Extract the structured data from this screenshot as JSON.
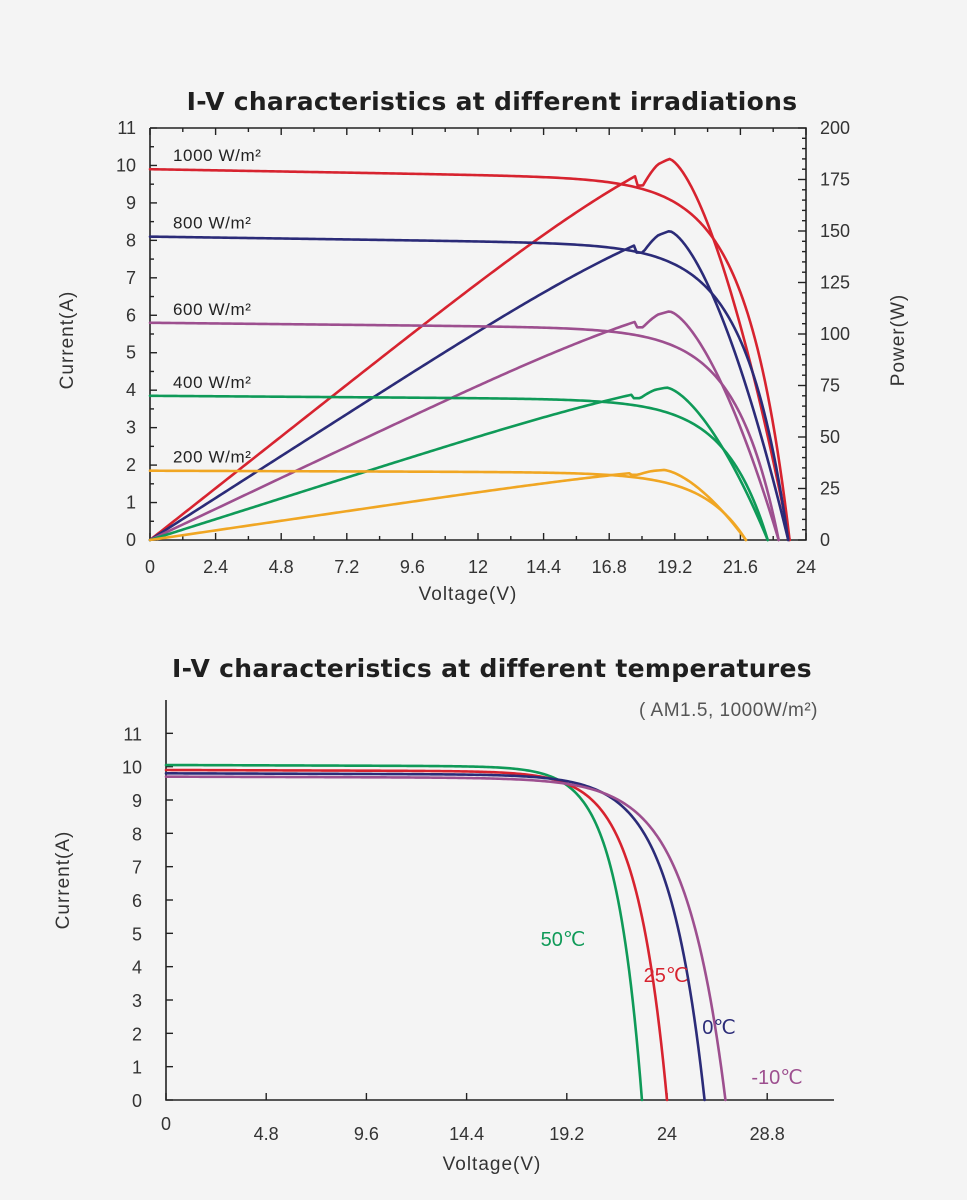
{
  "chart_data": [
    {
      "type": "line",
      "title": "I-V characteristics at different irradiations",
      "xlabel": "Voltage(V)",
      "ylabel": "Current(A)",
      "y2label": "Power(W)",
      "xlim": [
        0,
        24
      ],
      "ylim": [
        0,
        11
      ],
      "y2lim": [
        0,
        200
      ],
      "xticks": [
        "0",
        "2.4",
        "4.8",
        "7.2",
        "9.6",
        "12",
        "14.4",
        "16.8",
        "19.2",
        "21.6",
        "24"
      ],
      "yticks": [
        "0",
        "1",
        "2",
        "3",
        "4",
        "5",
        "6",
        "7",
        "8",
        "9",
        "10",
        "11"
      ],
      "y2ticks": [
        "0",
        "25",
        "50",
        "75",
        "100",
        "125",
        "150",
        "175",
        "200"
      ],
      "grid": false,
      "series": [
        {
          "name": "1000 W/m²",
          "color": "#d7232f",
          "isc": 9.9,
          "voc": 23.4,
          "pmax": 185,
          "vmp": 19.0
        },
        {
          "name": "800 W/m²",
          "color": "#2b2b78",
          "isc": 8.1,
          "voc": 23.35,
          "pmax": 150,
          "vmp": 19.0
        },
        {
          "name": "600 W/m²",
          "color": "#9d4f8f",
          "isc": 5.8,
          "voc": 23.0,
          "pmax": 111,
          "vmp": 19.0
        },
        {
          "name": "400 W/m²",
          "color": "#0f9a58",
          "isc": 3.85,
          "voc": 22.6,
          "pmax": 74,
          "vmp": 18.9
        },
        {
          "name": "200 W/m²",
          "color": "#f0a623",
          "isc": 1.85,
          "voc": 21.8,
          "pmax": 34,
          "vmp": 18.8
        }
      ]
    },
    {
      "type": "line",
      "title": "I-V characteristics at different temperatures",
      "subtitle": "( AM1.5, 1000W/m²)",
      "xlabel": "Voltage(V)",
      "ylabel": "Current(A)",
      "xlim": [
        0,
        32
      ],
      "ylim": [
        0,
        12
      ],
      "xticks": [
        "0",
        "4.8",
        "9.6",
        "14.4",
        "19.2",
        "24",
        "28.8"
      ],
      "yticks": [
        "0",
        "1",
        "2",
        "3",
        "4",
        "5",
        "6",
        "7",
        "8",
        "9",
        "10",
        "11"
      ],
      "grid": false,
      "series": [
        {
          "name": "50℃",
          "color": "#0f9a58",
          "isc": 10.05,
          "voc": 22.8
        },
        {
          "name": "25℃",
          "color": "#d7232f",
          "isc": 9.9,
          "voc": 24.0
        },
        {
          "name": "0℃",
          "color": "#2b2b78",
          "isc": 9.8,
          "voc": 25.8
        },
        {
          "name": "-10℃",
          "color": "#9d4f8f",
          "isc": 9.7,
          "voc": 26.8
        }
      ]
    }
  ]
}
